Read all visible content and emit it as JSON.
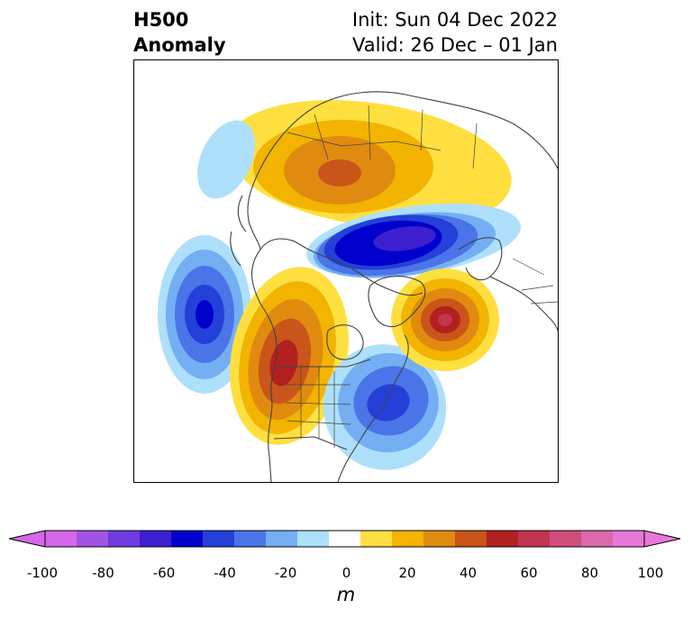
{
  "title": {
    "left_line1": "H500",
    "left_line2": "Anomaly",
    "right_line1": "Init: Sun 04 Dec 2022",
    "right_line2": "Valid: 26 Dec – 01 Jan"
  },
  "colorbar": {
    "unit": "m",
    "min": -100,
    "max": 100,
    "extend": "both",
    "tick_labels": [
      "-100",
      "-80",
      "-60",
      "-40",
      "-20",
      "0",
      "20",
      "40",
      "60",
      "80",
      "100"
    ],
    "levels": [
      -100,
      -90,
      -80,
      -70,
      -60,
      -50,
      -40,
      -30,
      -20,
      -10,
      10,
      20,
      30,
      40,
      50,
      60,
      70,
      80,
      90,
      100
    ],
    "colors": [
      "#d666e8",
      "#a153e3",
      "#6e3ce0",
      "#3d1fcf",
      "#0000cc",
      "#2540d8",
      "#4a74e8",
      "#73aff2",
      "#aee0fb",
      "#ffffff",
      "#ffe040",
      "#f2b400",
      "#e08b10",
      "#c9551a",
      "#b32020",
      "#c23450",
      "#d04e7c",
      "#dc68ac",
      "#e878d8"
    ],
    "extend_low_color": "#d666e8",
    "extend_high_color": "#e878d8"
  },
  "map": {
    "projection": "north-polar-stereographic",
    "features": [
      "coastlines",
      "country-borders",
      "us-state-borders"
    ],
    "anomaly_centers": [
      {
        "region": "Northeast Pacific",
        "sign": "negative",
        "peak_m": -60
      },
      {
        "region": "Western North America",
        "sign": "positive",
        "peak_m": 60
      },
      {
        "region": "Eastern North America",
        "sign": "negative",
        "peak_m": -50
      },
      {
        "region": "North Atlantic",
        "sign": "positive",
        "peak_m": 60
      },
      {
        "region": "Arctic / Northern Siberia",
        "sign": "negative",
        "peak_m": -60
      },
      {
        "region": "Northern Asia",
        "sign": "positive",
        "peak_m": 50
      },
      {
        "region": "Western Pacific",
        "sign": "negative",
        "peak_m": -20
      }
    ]
  }
}
